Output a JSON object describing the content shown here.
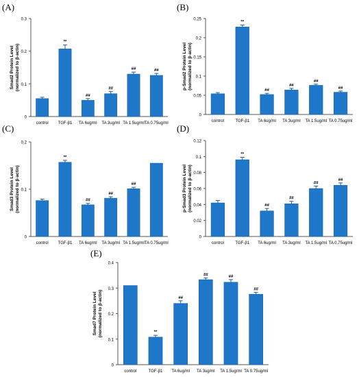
{
  "panel_labels": [
    "(A)",
    "(B)",
    "(C)",
    "(D)",
    "(E)"
  ],
  "chart_data": [
    {
      "type": "bar",
      "categories": [
        "control",
        "TGF-β1",
        "TA 6ug/ml",
        "TA 3ug/ml",
        "TA 1.5ug/ml",
        "TA 0.75ug/ml"
      ],
      "values": [
        0.055,
        0.207,
        0.05,
        0.07,
        0.13,
        0.126
      ],
      "errors": [
        0.004,
        0.012,
        0.005,
        0.007,
        0.006,
        0.006
      ],
      "significance": [
        "",
        "**",
        "##",
        "##",
        "##",
        "##"
      ],
      "ylabel": "Smad2 Protein Level",
      "ylabel2": "(normalized to β-actin)",
      "ylim": [
        0,
        0.3
      ],
      "yticks": [
        "0",
        "0.1",
        "0.2",
        "0.3"
      ],
      "bar_color": "#1f77c9"
    },
    {
      "type": "bar",
      "categories": [
        "control",
        "TGF-β1",
        "TA 6ug/ml",
        "TA 3ug/ml",
        "TA 1.5ug/ml",
        "TA 0.75ug/ml"
      ],
      "values": [
        0.054,
        0.228,
        0.052,
        0.064,
        0.076,
        0.058
      ],
      "errors": [
        0.003,
        0.005,
        0.003,
        0.004,
        0.003,
        0.003
      ],
      "significance": [
        "",
        "**",
        "##",
        "##",
        "##",
        "##"
      ],
      "ylabel": "p-Smad2 Protein Level",
      "ylabel2": "(normalized to β-actin)",
      "ylim": [
        0,
        0.25
      ],
      "yticks": [
        "0",
        "0.05",
        "0.1",
        "0.15",
        "0.2",
        "0.25"
      ],
      "bar_color": "#1f77c9"
    },
    {
      "type": "bar",
      "categories": [
        "control",
        "TGF-β1",
        "TA 6ug/ml",
        "TA 3ug/ml",
        "TA 1.5ug/ml",
        "TA 0.75ug/ml"
      ],
      "values": [
        0.076,
        0.157,
        0.067,
        0.081,
        0.101,
        0.155
      ],
      "errors": [
        0.003,
        0.004,
        0.003,
        0.003,
        0.003,
        0
      ],
      "significance": [
        "",
        "**",
        "##",
        "##",
        "##",
        ""
      ],
      "ylabel": "Smad3 Protein Level",
      "ylabel2": "(normalized to β-actin)",
      "ylim": [
        0,
        0.2
      ],
      "yticks": [
        "0",
        "0.1",
        "0.2"
      ],
      "bar_color": "#1f77c9"
    },
    {
      "type": "bar",
      "categories": [
        "control",
        "TGF-β1",
        "TA 6ug/ml",
        "TA 3ug/ml",
        "TA 1.5ug/ml",
        "TA 0.75ug/ml"
      ],
      "values": [
        0.042,
        0.096,
        0.032,
        0.041,
        0.06,
        0.064
      ],
      "errors": [
        0.003,
        0.003,
        0.003,
        0.003,
        0.003,
        0.003
      ],
      "significance": [
        "",
        "**",
        "##",
        "##",
        "##",
        "##"
      ],
      "ylabel": "p-Smad3 Protein Level",
      "ylabel2": "(normalized to β-actin)",
      "ylim": [
        0,
        0.12
      ],
      "yticks": [
        "0",
        "0.02",
        "0.04",
        "0.06",
        "0.08",
        "0.1",
        "0.12"
      ],
      "bar_color": "#1f77c9"
    },
    {
      "type": "bar",
      "categories": [
        "control",
        "TGF-β1",
        "TA 6ug/ml",
        "TA 3ug/ml",
        "TA 1.5ug/ml",
        "TA 0.75ug/ml"
      ],
      "values": [
        0.31,
        0.108,
        0.24,
        0.333,
        0.323,
        0.276
      ],
      "errors": [
        0,
        0.007,
        0.01,
        0.007,
        0.01,
        0.007
      ],
      "significance": [
        "",
        "**",
        "##",
        "##",
        "##",
        "##"
      ],
      "ylabel": "Smad7 Protein Level",
      "ylabel2": "(normalized to β-actin)",
      "ylim": [
        0,
        0.4
      ],
      "yticks": [
        "0",
        "0.1",
        "0.2",
        "0.3",
        "0.4"
      ],
      "bar_color": "#1f77c9"
    }
  ]
}
